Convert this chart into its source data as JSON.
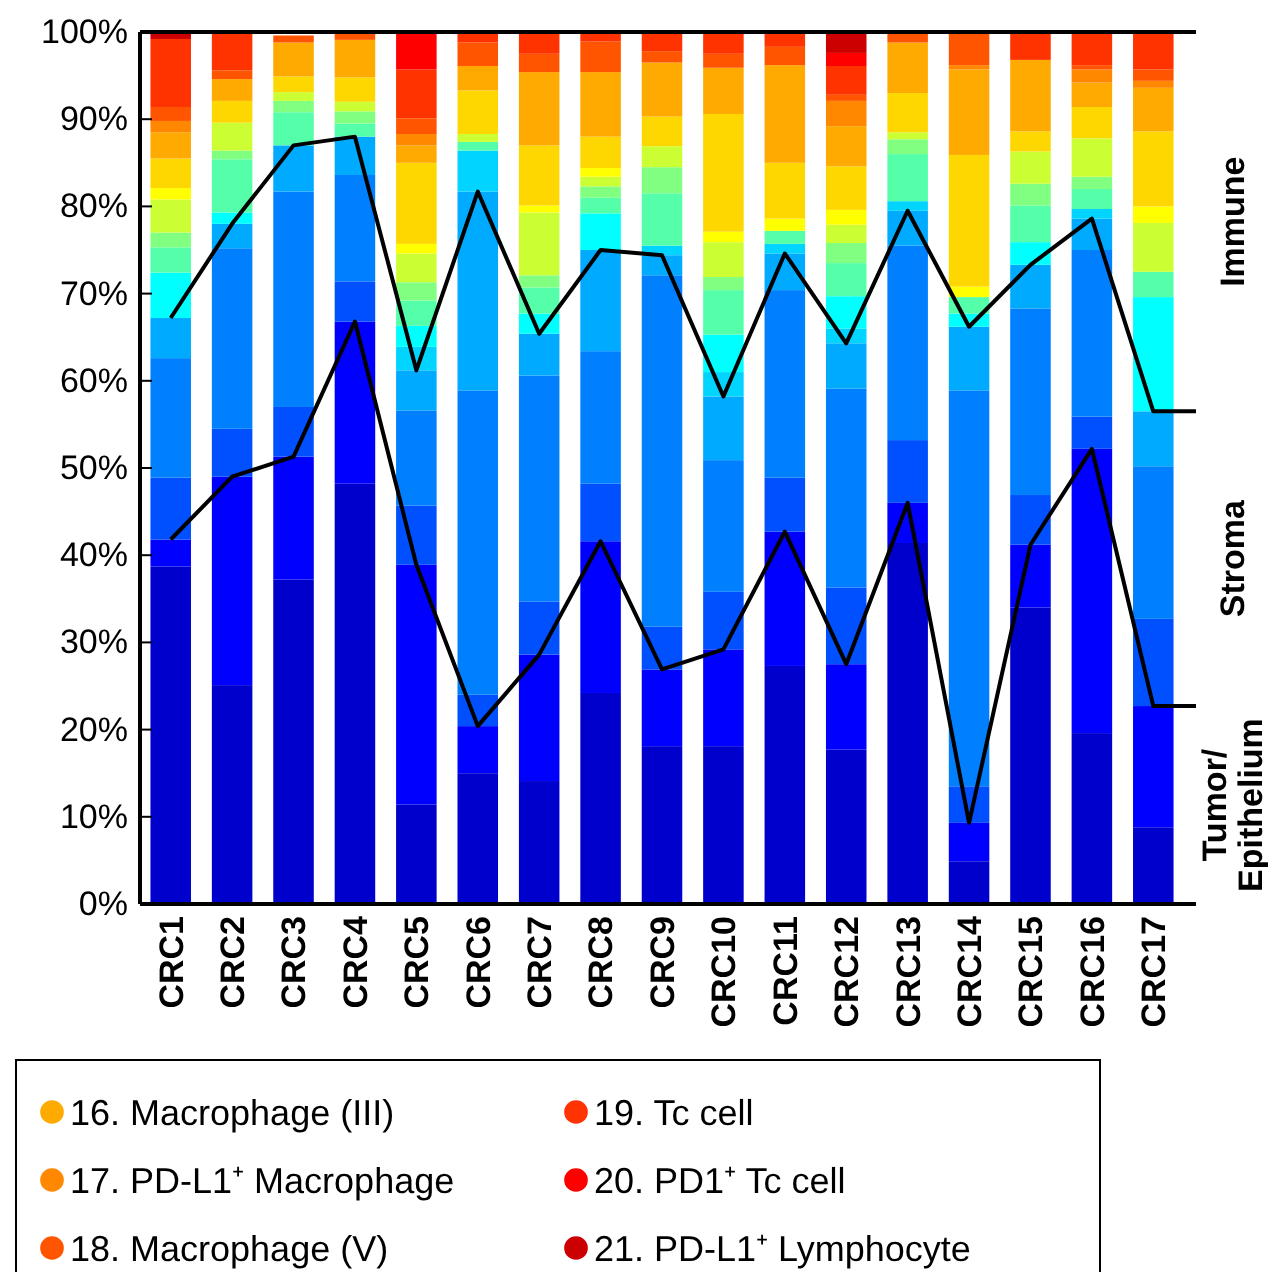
{
  "chart_data": {
    "type": "bar",
    "stacked": true,
    "categories": [
      "CRC1",
      "CRC2",
      "CRC3",
      "CRC4",
      "CRC5",
      "CRC6",
      "CRC7",
      "CRC8",
      "CRC9",
      "CRC10",
      "CRC11",
      "CRC12",
      "CRC13",
      "CRC14",
      "CRC15",
      "CRC16",
      "CRC17"
    ],
    "ylim": [
      0,
      100
    ],
    "yticks": [
      {
        "value": 0,
        "label": "0%"
      },
      {
        "value": 10,
        "label": "10%"
      },
      {
        "value": 20,
        "label": "20%"
      },
      {
        "value": 30,
        "label": "30%"
      },
      {
        "value": 40,
        "label": "40%"
      },
      {
        "value": 50,
        "label": "50%"
      },
      {
        "value": 60,
        "label": "60%"
      },
      {
        "value": 70,
        "label": "70%"
      },
      {
        "value": 80,
        "label": "80%"
      },
      {
        "value": 90,
        "label": "90%"
      },
      {
        "value": 100,
        "label": "100%"
      }
    ],
    "legend": "bottom",
    "annotations": [
      "Immune",
      "Stroma",
      "Tumor/ Epithelium"
    ],
    "series": [
      {
        "color": "#0000cc",
        "values": [
          38.7,
          25.1,
          37.2,
          48.2,
          11.4,
          15,
          14.1,
          24.2,
          18.1,
          18.1,
          27.3,
          17.7,
          41.4,
          4.9,
          34,
          19.6,
          8.8
        ]
      },
      {
        "color": "#0000ff",
        "values": [
          3.1,
          23.9,
          14.1,
          18.6,
          27.5,
          5.4,
          14.5,
          17.4,
          8.8,
          11.1,
          15.4,
          9.8,
          4.6,
          4.4,
          7.2,
          32.6,
          13.9
        ]
      },
      {
        "color": "#0050ff",
        "values": [
          7.1,
          5.5,
          5.7,
          4.6,
          6.8,
          3.6,
          6.1,
          6.6,
          4.9,
          6.6,
          6.2,
          8.8,
          7.2,
          4.2,
          5.7,
          3.7,
          10
        ]
      },
      {
        "color": "#0080ff",
        "values": [
          13.7,
          20.7,
          24.7,
          12.2,
          10.9,
          34.9,
          25.9,
          15.2,
          40.3,
          15.1,
          21.5,
          22.8,
          22.3,
          45.4,
          21.4,
          19.1,
          17.5
        ]
      },
      {
        "color": "#00aaff",
        "values": [
          4.6,
          2.8,
          5.3,
          4.4,
          4.6,
          22.8,
          4.8,
          11.6,
          2.3,
          7.3,
          4.2,
          5.2,
          4,
          7.3,
          5,
          3.6,
          6.3
        ]
      },
      {
        "color": "#00d4ff",
        "values": [
          0,
          0,
          0,
          0,
          2.7,
          4.7,
          0,
          0,
          1.1,
          2.8,
          1.1,
          1.7,
          1.1,
          0,
          0,
          1.1,
          0
        ]
      },
      {
        "color": "#00ffff",
        "values": [
          5.2,
          1.3,
          0,
          0,
          2.4,
          0,
          2.3,
          4.2,
          0,
          4.3,
          0,
          3.7,
          0,
          1.5,
          2.6,
          0,
          13.1
        ]
      },
      {
        "color": "#55ffaa",
        "values": [
          2.9,
          6.1,
          3.8,
          1.5,
          2.9,
          1,
          3,
          1.8,
          6,
          5.1,
          1.5,
          3.8,
          5.4,
          1.9,
          4.2,
          2.3,
          2.9
        ]
      },
      {
        "color": "#80ff80",
        "values": [
          1.7,
          1,
          1.3,
          1.4,
          2.1,
          0,
          1.4,
          1.3,
          3,
          1.5,
          0,
          2.3,
          1.7,
          0,
          2.5,
          1.4,
          0
        ]
      },
      {
        "color": "#ccff33",
        "values": [
          3.8,
          3.2,
          1,
          1.1,
          3.3,
          0.9,
          7.2,
          1.1,
          2.4,
          4,
          0,
          2.1,
          0.8,
          0,
          3.7,
          4.4,
          5.6
        ]
      },
      {
        "color": "#ffff00",
        "values": [
          1.3,
          0,
          0,
          0,
          1.1,
          0,
          0.8,
          1,
          0,
          1.2,
          1.4,
          1.7,
          0,
          1.2,
          0,
          0,
          1.9
        ]
      },
      {
        "color": "#ffd700",
        "values": [
          3.4,
          2.5,
          1.8,
          2.8,
          9.3,
          5,
          6.9,
          3.6,
          3.4,
          13.5,
          6.4,
          5,
          4.5,
          15.1,
          2.3,
          3.6,
          8.6
        ]
      },
      {
        "name": "16. Macrophage (III)",
        "color": "#ffaa00",
        "values": [
          3,
          2.5,
          3.9,
          4.3,
          2,
          2.8,
          8.4,
          7.4,
          6.2,
          5.3,
          11.2,
          4.6,
          5.8,
          9.8,
          8.2,
          2.8,
          5
        ]
      },
      {
        "name": "17. PD-L1⁺ Macrophage",
        "color": "#ff8800",
        "values": [
          1.3,
          0,
          0,
          0,
          1.3,
          0,
          0,
          0,
          0,
          0,
          0,
          2.9,
          0,
          0.5,
          0,
          1.5,
          0.8
        ]
      },
      {
        "name": "18. Macrophage (V)",
        "color": "#ff5500",
        "values": [
          1.6,
          1,
          0.8,
          0.9,
          1.8,
          2.7,
          2.1,
          3.5,
          1.3,
          1.6,
          2.1,
          0.7,
          1.2,
          3.8,
          0,
          0.5,
          1.3
        ]
      },
      {
        "name": "19. Tc cell",
        "color": "#ff3300",
        "values": [
          7.8,
          4.4,
          null,
          0,
          5.6,
          1.2,
          2.5,
          1.1,
          2.2,
          2.5,
          1.7,
          3.3,
          0,
          0,
          3.2,
          3.8,
          4.3
        ]
      },
      {
        "name": "20. PD1⁺ Tc cell",
        "color": "#ff0000",
        "values": [
          0,
          0,
          0,
          0,
          4.3,
          0,
          0,
          0,
          0,
          0,
          0,
          1.5,
          0,
          0,
          0,
          0,
          0
        ]
      },
      {
        "name": "21. PD-L1⁺ Lymphocyte",
        "color": "#cc0000",
        "values": [
          0.8,
          0,
          0,
          0,
          0,
          0,
          0,
          0,
          0,
          0,
          0,
          2.4,
          0,
          0,
          0,
          0,
          0
        ]
      },
      {
        "type": "line",
        "color": "#000000",
        "values": [
          41.8,
          49,
          51.3,
          66.8,
          38.9,
          20.4,
          28.6,
          41.6,
          26.9,
          29.2,
          42.7,
          27.5,
          46,
          9.3,
          41.2,
          52.2,
          22.7
        ]
      },
      {
        "type": "line",
        "color": "#000000",
        "values": [
          67.2,
          78,
          87,
          88,
          61.2,
          81.7,
          65.4,
          75,
          74.4,
          58.2,
          74.6,
          64.3,
          79.5,
          66.2,
          73.3,
          78.6,
          56.5
        ]
      }
    ]
  }
}
